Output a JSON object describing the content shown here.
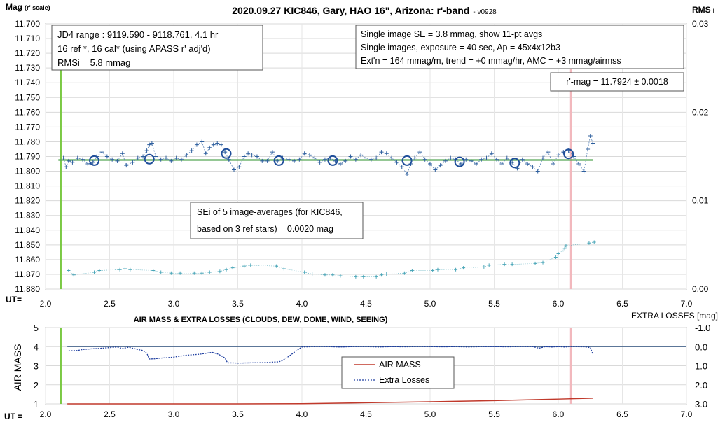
{
  "chart_data": [
    {
      "type": "scatter",
      "title": "2020.09.27 KIC846, Gary, HAO 16\", Arizona: r'-band",
      "title_suffix": "- v0928",
      "ylabel_main": "Mag",
      "ylabel_sub": "(r' scale)",
      "y2label_main": "RMS",
      "y2label_sub": "i",
      "xlabel": "UT=",
      "xlim": [
        2.0,
        7.0
      ],
      "ylim": [
        11.7,
        11.88
      ],
      "y_reversed": true,
      "y2lim": [
        0.0,
        0.03
      ],
      "x_ticks": [
        "2.0",
        "2.5",
        "3.0",
        "3.5",
        "4.0",
        "4.5",
        "5.0",
        "5.5",
        "6.0",
        "6.5",
        "7.0"
      ],
      "y_ticks": [
        "11.700",
        "11.710",
        "11.720",
        "11.730",
        "11.740",
        "11.750",
        "11.760",
        "11.770",
        "11.780",
        "11.790",
        "11.800",
        "11.810",
        "11.820",
        "11.830",
        "11.840",
        "11.850",
        "11.860",
        "11.870",
        "11.880"
      ],
      "y2_ticks": [
        "0.03",
        "0.02",
        "0.01",
        "0.00"
      ],
      "grid": true,
      "colors": {
        "points": "#2e5f9e",
        "circles": "#1f4e9a",
        "trend": "#5aa95a",
        "start_line": "#7ac943",
        "end_line": "#f2b8bd",
        "rms": "#4aa6b8"
      },
      "annotations": {
        "info_box": [
          "JD4 range : 9119.590 - 9118.761,  4.1  hr",
          "16 ref *, 16 cal* (using APASS r' adj'd)",
          "RMSi = 5.8 mmag"
        ],
        "obs_box": [
          "Single image SE = 3.8 mmag, show  11-pt avgs",
          "Single images, exposure = 40 sec, Ap = 45x4x12b3",
          "Ext'n = 164 mmag/m, trend =  +0 mmag/hr, AMC = +3 mmag/airmss"
        ],
        "result_box": "r'-mag = 11.7924 ± 0.0018",
        "sei_box": [
          "SEi of 5 image-averages (for KIC846,",
          "based on 3 ref stars) = 0.0020 mag"
        ]
      },
      "start_ut": 2.12,
      "end_ut": 6.1,
      "trend_mag": 11.7924,
      "series": [
        {
          "kind": "image_mags",
          "x": [
            2.14,
            2.16,
            2.18,
            2.21,
            2.25,
            2.29,
            2.33,
            2.37,
            2.4,
            2.44,
            2.48,
            2.52,
            2.56,
            2.6,
            2.63,
            2.68,
            2.72,
            2.76,
            2.79,
            2.81,
            2.83,
            2.86,
            2.9,
            2.94,
            2.98,
            3.02,
            3.06,
            3.1,
            3.14,
            3.18,
            3.22,
            3.25,
            3.28,
            3.31,
            3.34,
            3.37,
            3.4,
            3.43,
            3.47,
            3.51,
            3.55,
            3.58,
            3.61,
            3.65,
            3.69,
            3.73,
            3.77,
            3.81,
            3.85,
            3.9,
            3.94,
            3.98,
            4.02,
            4.06,
            4.1,
            4.14,
            4.18,
            4.22,
            4.26,
            4.3,
            4.34,
            4.38,
            4.42,
            4.46,
            4.5,
            4.54,
            4.58,
            4.62,
            4.66,
            4.7,
            4.74,
            4.78,
            4.82,
            4.85,
            4.88,
            4.92,
            4.96,
            5.0,
            5.04,
            5.08,
            5.12,
            5.16,
            5.2,
            5.24,
            5.28,
            5.32,
            5.36,
            5.4,
            5.44,
            5.48,
            5.52,
            5.56,
            5.6,
            5.64,
            5.68,
            5.72,
            5.76,
            5.8,
            5.84,
            5.88,
            5.92,
            5.96,
            6.0,
            6.04,
            6.08,
            6.12,
            6.16,
            6.2,
            6.23,
            6.25,
            6.27
          ],
          "y": [
            11.791,
            11.797,
            11.793,
            11.794,
            11.791,
            11.792,
            11.795,
            11.794,
            11.79,
            11.787,
            11.79,
            11.792,
            11.793,
            11.788,
            11.796,
            11.794,
            11.791,
            11.79,
            11.786,
            11.782,
            11.781,
            11.79,
            11.792,
            11.791,
            11.793,
            11.791,
            11.792,
            11.789,
            11.786,
            11.782,
            11.78,
            11.788,
            11.784,
            11.782,
            11.781,
            11.782,
            11.787,
            11.792,
            11.799,
            11.797,
            11.79,
            11.788,
            11.789,
            11.79,
            11.793,
            11.793,
            11.787,
            11.793,
            11.791,
            11.792,
            11.793,
            11.792,
            11.788,
            11.789,
            11.791,
            11.794,
            11.792,
            11.791,
            11.793,
            11.795,
            11.793,
            11.79,
            11.792,
            11.789,
            11.791,
            11.792,
            11.791,
            11.787,
            11.788,
            11.791,
            11.794,
            11.797,
            11.802,
            11.795,
            11.791,
            11.787,
            11.792,
            11.795,
            11.799,
            11.796,
            11.793,
            11.791,
            11.792,
            11.795,
            11.792,
            11.793,
            11.795,
            11.792,
            11.791,
            11.788,
            11.792,
            11.795,
            11.791,
            11.794,
            11.798,
            11.792,
            11.795,
            11.797,
            11.8,
            11.791,
            11.787,
            11.795,
            11.789,
            11.787,
            11.786,
            11.79,
            11.795,
            11.8,
            11.785,
            11.776,
            11.781
          ]
        },
        {
          "kind": "averages",
          "x": [
            2.38,
            2.81,
            3.41,
            3.82,
            4.24,
            4.82,
            5.23,
            5.66,
            6.08
          ],
          "y": [
            11.7928,
            11.7918,
            11.788,
            11.7928,
            11.7928,
            11.7928,
            11.7936,
            11.7944,
            11.7882
          ]
        },
        {
          "kind": "rms",
          "x": [
            2.18,
            2.22,
            2.38,
            2.42,
            2.58,
            2.62,
            2.66,
            2.84,
            2.9,
            2.98,
            3.05,
            3.16,
            3.22,
            3.28,
            3.36,
            3.41,
            3.46,
            3.55,
            3.6,
            3.8,
            3.86,
            4.02,
            4.08,
            4.18,
            4.24,
            4.3,
            4.42,
            4.48,
            4.58,
            4.62,
            4.66,
            4.8,
            4.86,
            5.02,
            5.06,
            5.2,
            5.26,
            5.42,
            5.46,
            5.58,
            5.64,
            5.82,
            5.88,
            5.98,
            6.0,
            6.03,
            6.05,
            6.06,
            6.24,
            6.28
          ],
          "y": [
            0.0021,
            0.0016,
            0.0019,
            0.0021,
            0.0022,
            0.0023,
            0.0022,
            0.0021,
            0.0019,
            0.0018,
            0.0018,
            0.0018,
            0.0018,
            0.0019,
            0.002,
            0.0022,
            0.0024,
            0.0026,
            0.0027,
            0.0026,
            0.0023,
            0.0019,
            0.0017,
            0.0016,
            0.0016,
            0.0015,
            0.0014,
            0.0014,
            0.0014,
            0.0016,
            0.0017,
            0.0018,
            0.0021,
            0.0021,
            0.0022,
            0.0022,
            0.0024,
            0.0025,
            0.0027,
            0.0028,
            0.0028,
            0.0029,
            0.003,
            0.0036,
            0.004,
            0.0043,
            0.0046,
            0.0049,
            0.0052,
            0.0053
          ]
        }
      ]
    },
    {
      "type": "line",
      "title": "AIR MASS & EXTRA LOSSES (CLOUDS, DEW, DOME, WIND, SEEING)",
      "ylabel": "AIR MASS",
      "y2label": "EXTRA LOSSES [mag]",
      "xlabel": "UT =",
      "xlim": [
        2.0,
        7.0
      ],
      "ylim": [
        1,
        5
      ],
      "y2lim": [
        3.0,
        -1.0
      ],
      "x_ticks": [
        "2.0",
        "2.5",
        "3.0",
        "3.5",
        "4.0",
        "4.5",
        "5.0",
        "5.5",
        "6.0",
        "6.5",
        "7.0"
      ],
      "y_ticks": [
        "5",
        "4",
        "3",
        "2",
        "1"
      ],
      "y2_ticks": [
        "-1.0",
        "0.0",
        "1.0",
        "2.0",
        "3.0"
      ],
      "grid": true,
      "legend": [
        "AIR MASS",
        "Extra Losses"
      ],
      "colors": {
        "air_mass": "#c0392b",
        "extra_losses": "#1f3fa0",
        "zero_line": "#2d4f7c"
      },
      "series": [
        {
          "name": "AIR MASS",
          "x": [
            2.17,
            2.5,
            3.0,
            3.5,
            4.0,
            4.5,
            5.0,
            5.5,
            6.0,
            6.27
          ],
          "y": [
            1.0,
            1.0,
            1.0,
            1.0,
            1.01,
            1.06,
            1.11,
            1.17,
            1.25,
            1.3
          ]
        },
        {
          "name": "Extra Losses",
          "x": [
            2.18,
            2.25,
            2.3,
            2.4,
            2.5,
            2.56,
            2.6,
            2.65,
            2.72,
            2.76,
            2.79,
            2.81,
            2.85,
            2.9,
            2.95,
            3.0,
            3.1,
            3.2,
            3.3,
            3.35,
            3.4,
            3.42,
            3.45,
            3.5,
            3.6,
            3.7,
            3.75,
            3.8,
            3.82,
            3.85,
            3.9,
            3.95,
            4.0,
            4.1,
            4.2,
            4.3,
            4.4,
            4.5,
            4.6,
            4.7,
            4.8,
            4.9,
            5.0,
            5.1,
            5.2,
            5.3,
            5.4,
            5.5,
            5.6,
            5.7,
            5.8,
            5.85,
            5.9,
            5.95,
            6.0,
            6.05,
            6.1,
            6.2,
            6.25,
            6.27
          ],
          "y": [
            0.22,
            0.2,
            0.14,
            0.1,
            0.05,
            0.02,
            0.1,
            0.03,
            0.15,
            0.2,
            0.35,
            0.65,
            0.64,
            0.6,
            0.58,
            0.55,
            0.45,
            0.4,
            0.3,
            0.4,
            0.6,
            0.85,
            0.85,
            0.86,
            0.85,
            0.84,
            0.82,
            0.8,
            0.8,
            0.72,
            0.5,
            0.25,
            0.02,
            0.0,
            0.0,
            0.02,
            0.0,
            0.0,
            0.02,
            0.0,
            0.01,
            0.0,
            0.0,
            0.01,
            0.0,
            0.02,
            0.0,
            0.0,
            0.01,
            0.0,
            0.0,
            0.08,
            0.0,
            0.02,
            0.0,
            0.02,
            0.0,
            0.01,
            0.05,
            0.4
          ]
        }
      ]
    }
  ]
}
